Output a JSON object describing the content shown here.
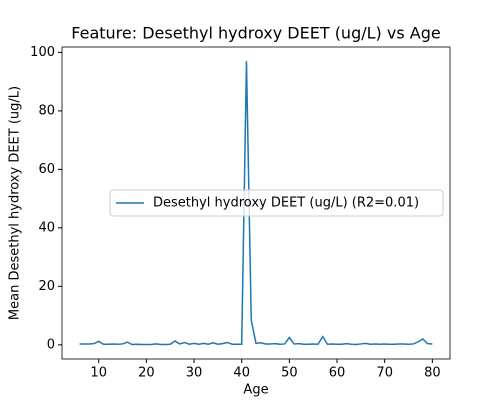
{
  "chart_data": {
    "type": "line",
    "title": "Feature: Desethyl hydroxy DEET (ug/L) vs Age",
    "xlabel": "Age",
    "ylabel": "Mean Desethyl hydroxy DEET (ug/L)",
    "x": [
      6,
      7,
      8,
      9,
      10,
      11,
      12,
      13,
      14,
      15,
      16,
      17,
      18,
      19,
      20,
      21,
      22,
      23,
      24,
      25,
      26,
      27,
      28,
      29,
      30,
      31,
      32,
      33,
      34,
      35,
      36,
      37,
      38,
      39,
      40,
      41,
      42,
      43,
      44,
      45,
      46,
      47,
      48,
      49,
      50,
      51,
      52,
      53,
      54,
      55,
      56,
      57,
      58,
      59,
      60,
      61,
      62,
      63,
      64,
      65,
      66,
      67,
      68,
      69,
      70,
      71,
      72,
      73,
      74,
      75,
      76,
      77,
      78,
      79,
      80
    ],
    "series": [
      {
        "name": "Desethyl hydroxy DEET (ug/L) (R2=0.01)",
        "color": "#1f77b4",
        "values": [
          0.3,
          0.3,
          0.3,
          0.4,
          1.2,
          0.2,
          0.2,
          0.3,
          0.2,
          0.3,
          0.9,
          0.1,
          0.2,
          0.1,
          0.1,
          0.1,
          0.3,
          0.1,
          0.1,
          0.2,
          1.3,
          0.3,
          0.8,
          0.2,
          0.5,
          0.2,
          0.5,
          0.2,
          0.7,
          0.2,
          0.4,
          0.8,
          0.2,
          0.2,
          0.2,
          97,
          8.5,
          0.5,
          0.7,
          0.3,
          0.3,
          0.4,
          0.2,
          0.3,
          2.5,
          0.3,
          0.4,
          0.2,
          0.2,
          0.3,
          0.2,
          2.8,
          0.2,
          0.3,
          0.2,
          0.2,
          0.4,
          0.2,
          0.1,
          0.3,
          0.5,
          0.2,
          0.3,
          0.2,
          0.3,
          0.2,
          0.2,
          0.3,
          0.3,
          0.2,
          0.3,
          1.0,
          2.0,
          0.4,
          0.3
        ]
      }
    ],
    "xlim": [
      2.3,
      83.7
    ],
    "xticks": [
      10,
      20,
      30,
      40,
      50,
      60,
      70,
      80
    ],
    "ylim": [
      -4.85,
      101.85
    ],
    "yticks": [
      0,
      20,
      40,
      60,
      80,
      100
    ],
    "grid": false,
    "legend": "center right"
  }
}
